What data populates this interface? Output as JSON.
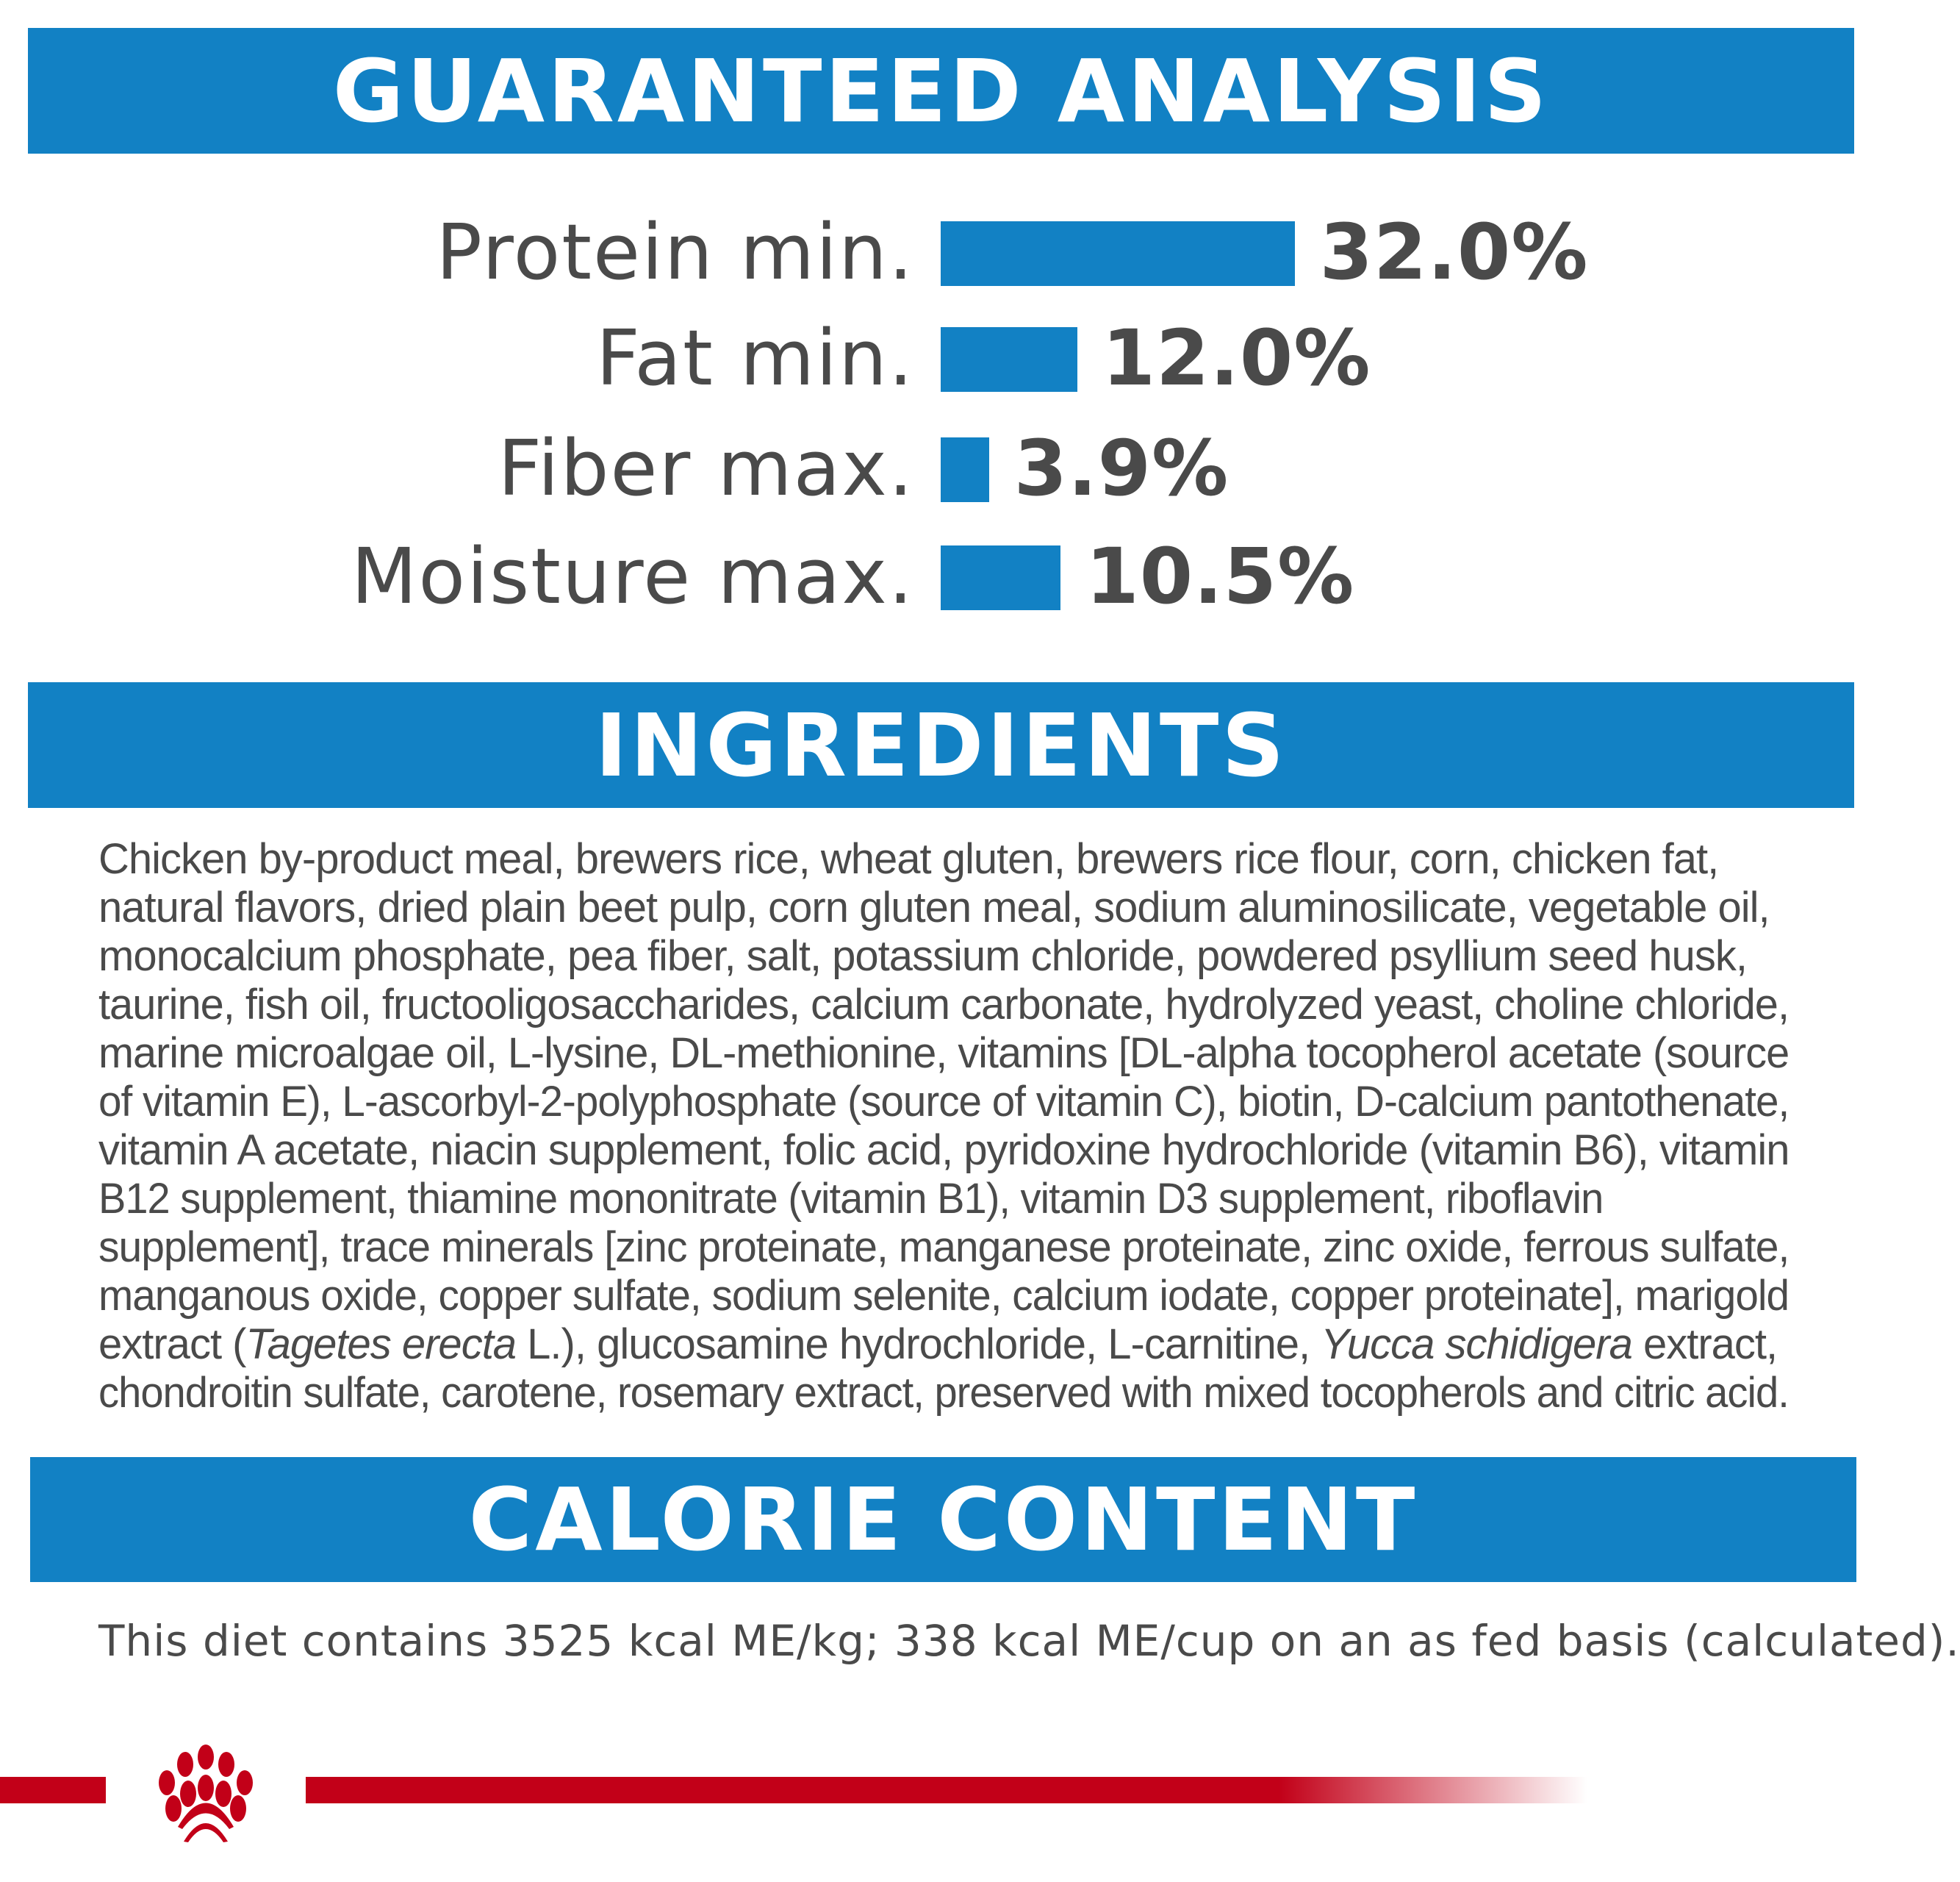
{
  "guaranteed_analysis": {
    "title": "GUARANTEED ANALYSIS",
    "bar_color": "#1281c4",
    "rows": [
      {
        "label": "Protein min.",
        "value": "32.0%",
        "percent": 32.0
      },
      {
        "label": "Fat min.",
        "value": "12.0%",
        "percent": 12.0
      },
      {
        "label": "Fiber max.",
        "value": "3.9%",
        "percent": 3.9
      },
      {
        "label": "Moisture max.",
        "value": "10.5%",
        "percent": 10.5
      }
    ]
  },
  "ingredients": {
    "title": "INGREDIENTS",
    "lines": [
      "Chicken by-product meal, brewers rice, wheat gluten, brewers rice flour, corn, chicken fat,",
      "natural flavors, dried plain beet pulp, corn gluten meal, sodium aluminosilicate, vegetable oil,",
      "monocalcium phosphate, pea fiber, salt, potassium chloride, powdered psyllium seed husk,",
      "taurine, fish oil, fructooligosaccharides, calcium carbonate, hydrolyzed yeast, choline chloride,",
      "marine microalgae oil, L-lysine, DL-methionine, vitamins [DL-alpha tocopherol acetate (source",
      "of vitamin E), L-ascorbyl-2-polyphosphate (source of vitamin C), biotin, D-calcium pantothenate,",
      "vitamin A acetate, niacin supplement, folic acid, pyridoxine hydrochloride (vitamin B6), vitamin",
      "B12 supplement, thiamine mononitrate (vitamin B1), vitamin D3 supplement, riboflavin",
      "supplement], trace minerals [zinc proteinate, manganese proteinate, zinc oxide, ferrous sulfate,",
      "manganous oxide, copper sulfate, sodium selenite, calcium iodate, copper proteinate], marigold",
      "chondroitin sulfate, carotene, rosemary extract, preserved with mixed tocopherols and citric acid."
    ],
    "line_12": {
      "a": "extract (",
      "b_italic": "Tagetes erecta",
      "c": " L.), glucosamine hydrochloride, L-carnitine, ",
      "d_italic": "Yucca schidigera",
      "e": " extract,"
    }
  },
  "calorie_content": {
    "title": "CALORIE CONTENT",
    "text": "This diet contains 3525 kcal ME/kg; 338 kcal ME/cup on an as fed basis (calculated)."
  },
  "brand": {
    "accent": "#c20018",
    "logo": "crown-icon"
  }
}
